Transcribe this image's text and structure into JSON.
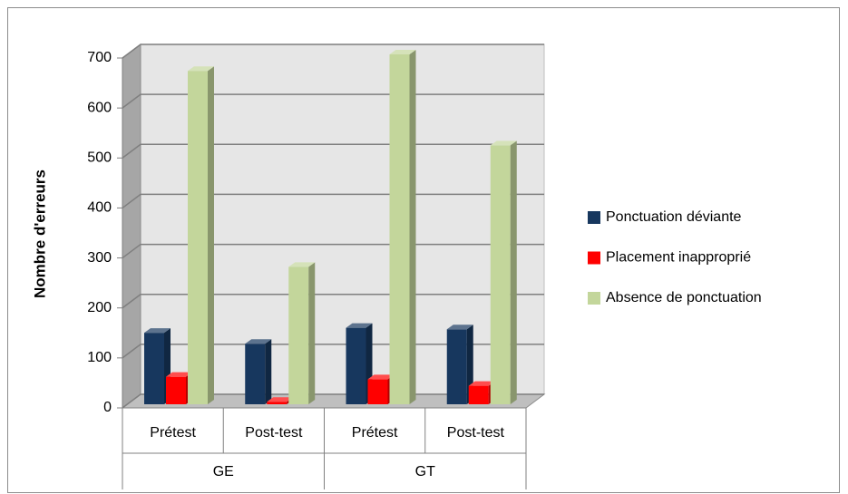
{
  "chart_data": {
    "type": "bar3d",
    "y_label": "Nombre d'erreurs",
    "categories": [
      "Prétest",
      "Post-test",
      "Prétest",
      "Post-test"
    ],
    "groups": [
      "GE",
      "GT"
    ],
    "series": [
      {
        "name": "Ponctuation déviante",
        "color": "#17375e",
        "values": [
          143,
          121,
          153,
          150
        ]
      },
      {
        "name": "Placement inapproprié",
        "color": "#ff0000",
        "values": [
          55,
          5,
          50,
          37
        ]
      },
      {
        "name": "Absence de ponctuation",
        "color": "#c3d69b",
        "values": [
          667,
          275,
          700,
          518
        ]
      }
    ],
    "ylim": [
      0,
      700
    ],
    "yticks": [
      0,
      100,
      200,
      300,
      400,
      500,
      600,
      700
    ],
    "grid": true,
    "legend": "right"
  }
}
